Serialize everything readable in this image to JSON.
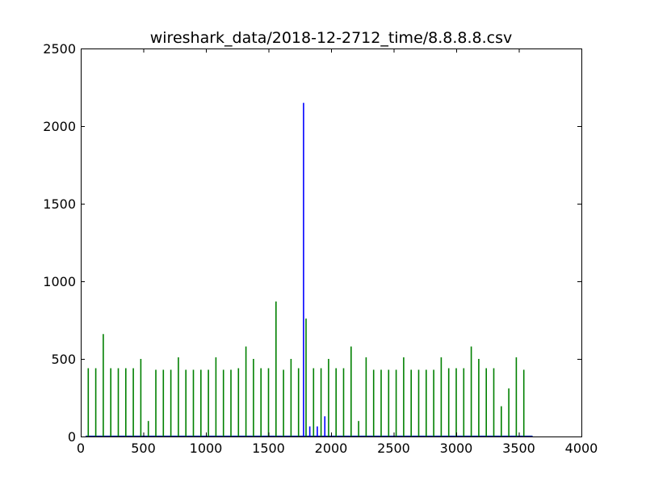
{
  "chart_data": {
    "type": "bar",
    "title": "wireshark_data/2018-12-2712_time/8.8.8.8.csv",
    "xlabel": "",
    "ylabel": "",
    "xlim": [
      0,
      4000
    ],
    "ylim": [
      0,
      2500
    ],
    "x_ticks": [
      0,
      500,
      1000,
      1500,
      2000,
      2500,
      3000,
      3500,
      4000
    ],
    "y_ticks": [
      0,
      500,
      1000,
      1500,
      2000,
      2500
    ],
    "grid": false,
    "legend": "none",
    "series": [
      {
        "color": "#008000",
        "points": [
          {
            "x": 60,
            "y": 440
          },
          {
            "x": 120,
            "y": 440
          },
          {
            "x": 180,
            "y": 660
          },
          {
            "x": 240,
            "y": 440
          },
          {
            "x": 300,
            "y": 440
          },
          {
            "x": 360,
            "y": 440
          },
          {
            "x": 420,
            "y": 440
          },
          {
            "x": 480,
            "y": 500
          },
          {
            "x": 540,
            "y": 100
          },
          {
            "x": 600,
            "y": 430
          },
          {
            "x": 660,
            "y": 430
          },
          {
            "x": 720,
            "y": 430
          },
          {
            "x": 780,
            "y": 510
          },
          {
            "x": 840,
            "y": 430
          },
          {
            "x": 900,
            "y": 430
          },
          {
            "x": 960,
            "y": 430
          },
          {
            "x": 1020,
            "y": 430
          },
          {
            "x": 1080,
            "y": 510
          },
          {
            "x": 1140,
            "y": 430
          },
          {
            "x": 1200,
            "y": 430
          },
          {
            "x": 1260,
            "y": 440
          },
          {
            "x": 1320,
            "y": 580
          },
          {
            "x": 1380,
            "y": 500
          },
          {
            "x": 1440,
            "y": 440
          },
          {
            "x": 1500,
            "y": 440
          },
          {
            "x": 1560,
            "y": 870
          },
          {
            "x": 1620,
            "y": 430
          },
          {
            "x": 1680,
            "y": 500
          },
          {
            "x": 1740,
            "y": 440
          },
          {
            "x": 1800,
            "y": 760
          },
          {
            "x": 1860,
            "y": 440
          },
          {
            "x": 1920,
            "y": 440
          },
          {
            "x": 1980,
            "y": 500
          },
          {
            "x": 2040,
            "y": 440
          },
          {
            "x": 2100,
            "y": 440
          },
          {
            "x": 2160,
            "y": 580
          },
          {
            "x": 2220,
            "y": 100
          },
          {
            "x": 2280,
            "y": 510
          },
          {
            "x": 2340,
            "y": 430
          },
          {
            "x": 2400,
            "y": 430
          },
          {
            "x": 2460,
            "y": 430
          },
          {
            "x": 2520,
            "y": 430
          },
          {
            "x": 2580,
            "y": 510
          },
          {
            "x": 2640,
            "y": 430
          },
          {
            "x": 2700,
            "y": 430
          },
          {
            "x": 2760,
            "y": 430
          },
          {
            "x": 2820,
            "y": 430
          },
          {
            "x": 2880,
            "y": 510
          },
          {
            "x": 2940,
            "y": 440
          },
          {
            "x": 3000,
            "y": 440
          },
          {
            "x": 3060,
            "y": 440
          },
          {
            "x": 3120,
            "y": 580
          },
          {
            "x": 3180,
            "y": 500
          },
          {
            "x": 3240,
            "y": 440
          },
          {
            "x": 3300,
            "y": 440
          },
          {
            "x": 3360,
            "y": 195
          },
          {
            "x": 3420,
            "y": 310
          },
          {
            "x": 3480,
            "y": 510
          },
          {
            "x": 3540,
            "y": 430
          }
        ]
      },
      {
        "color": "#0000ff",
        "points": [
          {
            "x": 1780,
            "y": 2150
          },
          {
            "x": 1830,
            "y": 65
          },
          {
            "x": 1890,
            "y": 65
          },
          {
            "x": 1950,
            "y": 130
          }
        ]
      }
    ],
    "baselines": [
      {
        "color": "#008000",
        "x_start": 40,
        "x_end": 3610,
        "y": 3
      },
      {
        "color": "#0000ff",
        "x_start": 40,
        "x_end": 3610,
        "y": 1
      }
    ]
  }
}
